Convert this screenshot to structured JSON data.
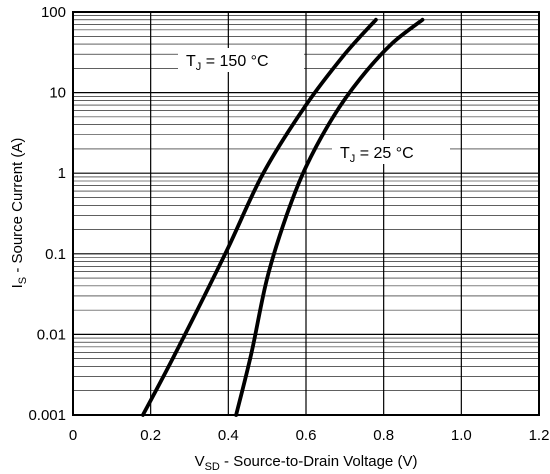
{
  "chart_data": {
    "type": "line",
    "xlabel": {
      "main": "V",
      "sub": "SD",
      "rest": " - Source-to-Drain Voltage (V)"
    },
    "ylabel": {
      "main": "I",
      "sub": "S",
      "rest": " - Source Current (A)"
    },
    "xlim": [
      0,
      1.2
    ],
    "ylim": [
      0.001,
      100
    ],
    "yscale": "log",
    "grid": true,
    "x_ticks": [
      "0",
      "0.2",
      "0.4",
      "0.6",
      "0.8",
      "1.0",
      "1.2"
    ],
    "x_tick_values": [
      0,
      0.2,
      0.4,
      0.6,
      0.8,
      1.0,
      1.2
    ],
    "y_ticks": [
      "0.001",
      "0.01",
      "0.1",
      "1",
      "10",
      "100"
    ],
    "y_tick_values": [
      0.001,
      0.01,
      0.1,
      1,
      10,
      100
    ],
    "series": [
      {
        "name": "TJ = 150 °C",
        "x": [
          0.18,
          0.24,
          0.32,
          0.4,
          0.49,
          0.6,
          0.7,
          0.78
        ],
        "y": [
          0.001,
          0.0035,
          0.02,
          0.12,
          1.0,
          7.0,
          30,
          80
        ]
      },
      {
        "name": "TJ = 25 °C",
        "x": [
          0.42,
          0.46,
          0.5,
          0.55,
          0.6,
          0.67,
          0.74,
          0.82,
          0.9
        ],
        "y": [
          0.001,
          0.006,
          0.05,
          0.3,
          1.2,
          5.0,
          15,
          40,
          80
        ]
      }
    ],
    "annotations": [
      {
        "main": "T",
        "sub": "J",
        "rest": " = 150 °C",
        "series": 0
      },
      {
        "main": "T",
        "sub": "J",
        "rest": " = 25 °C",
        "series": 1
      }
    ]
  }
}
